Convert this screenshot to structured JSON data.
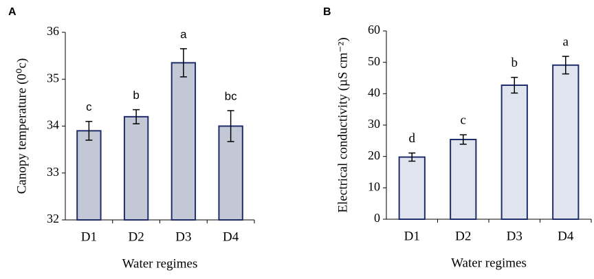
{
  "chart_data": [
    {
      "type": "bar",
      "panel_label": "A",
      "ylabel": "Canopy temperature (0⁰c)",
      "xlabel": "Water regimes",
      "categories": [
        "D1",
        "D2",
        "D3",
        "D4"
      ],
      "values": [
        33.9,
        34.2,
        35.35,
        34.0
      ],
      "errors": [
        0.2,
        0.15,
        0.3,
        0.33
      ],
      "annotations": [
        "c",
        "b",
        "a",
        "bc"
      ],
      "ylim": [
        32,
        36
      ],
      "yticks": [
        32,
        33,
        34,
        35,
        36
      ],
      "color": "#c3c8d6",
      "edge_color": "#1f2d6b"
    },
    {
      "type": "bar",
      "panel_label": "B",
      "ylabel": "Electrical conductivity (µS cm⁻²)",
      "xlabel": "Water regimes",
      "categories": [
        "D1",
        "D2",
        "D3",
        "D4"
      ],
      "values": [
        19.8,
        25.4,
        42.7,
        49.1
      ],
      "errors": [
        1.3,
        1.5,
        2.5,
        2.8
      ],
      "annotations": [
        "d",
        "c",
        "b",
        "a"
      ],
      "ylim": [
        0,
        60
      ],
      "yticks": [
        0,
        10,
        20,
        30,
        40,
        50,
        60
      ],
      "color": "#dfe4ee",
      "edge_color": "#1f2d6b"
    }
  ]
}
